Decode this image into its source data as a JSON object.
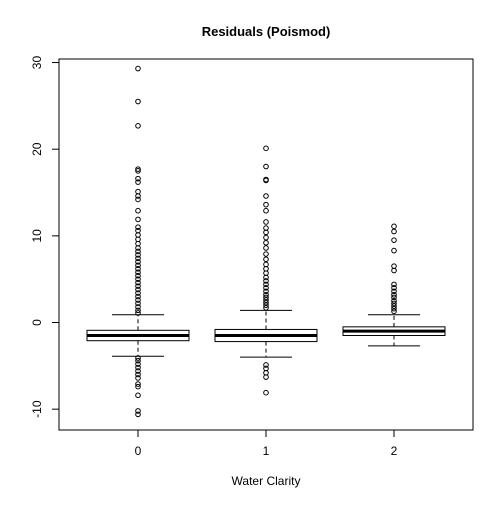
{
  "chart_data": {
    "type": "boxplot",
    "title": "Residuals (Poismod)",
    "xlabel": "Water Clarity",
    "ylabel": "",
    "ylim": [
      -12.2,
      30.8
    ],
    "yticks": [
      -10,
      0,
      10,
      20,
      30
    ],
    "categories": [
      "0",
      "1",
      "2"
    ],
    "boxes": [
      {
        "category": "0",
        "whisker_low": -3.9,
        "q1": -2.1,
        "median": -1.5,
        "q3": -0.9,
        "whisker_high": 0.9,
        "outliers": [
          29.3,
          25.5,
          22.7,
          17.7,
          17.5,
          16.6,
          16.2,
          15.1,
          14.6,
          14.2,
          12.9,
          11.9,
          11.0,
          10.6,
          10.1,
          9.6,
          9.1,
          8.6,
          8.2,
          7.8,
          7.4,
          7.0,
          6.6,
          6.2,
          5.8,
          5.4,
          5.0,
          4.6,
          4.2,
          3.8,
          3.4,
          3.0,
          2.6,
          2.2,
          1.8,
          1.4,
          1.1,
          -4.1,
          -4.4,
          -4.8,
          -5.2,
          -5.6,
          -6.0,
          -6.4,
          -7.1,
          -7.4,
          -8.4,
          -10.2,
          -10.6
        ]
      },
      {
        "category": "1",
        "whisker_low": -4.0,
        "q1": -2.2,
        "median": -1.5,
        "q3": -0.8,
        "whisker_high": 1.4,
        "outliers": [
          20.1,
          18.0,
          16.5,
          16.4,
          14.6,
          13.6,
          12.9,
          11.6,
          10.9,
          10.4,
          9.8,
          9.2,
          8.6,
          7.9,
          7.3,
          6.7,
          6.2,
          5.7,
          5.2,
          4.8,
          4.4,
          4.0,
          3.6,
          3.2,
          2.9,
          2.6,
          2.3,
          2.0,
          1.7,
          -4.9,
          -5.3,
          -5.8,
          -6.3,
          -8.1
        ]
      },
      {
        "category": "2",
        "whisker_low": -2.7,
        "q1": -1.5,
        "median": -1.0,
        "q3": -0.5,
        "whisker_high": 0.9,
        "outliers": [
          11.1,
          10.5,
          9.5,
          8.3,
          6.5,
          6.0,
          4.4,
          4.0,
          3.6,
          3.2,
          2.9,
          2.5,
          2.2,
          1.9,
          1.6,
          1.3
        ]
      }
    ]
  }
}
